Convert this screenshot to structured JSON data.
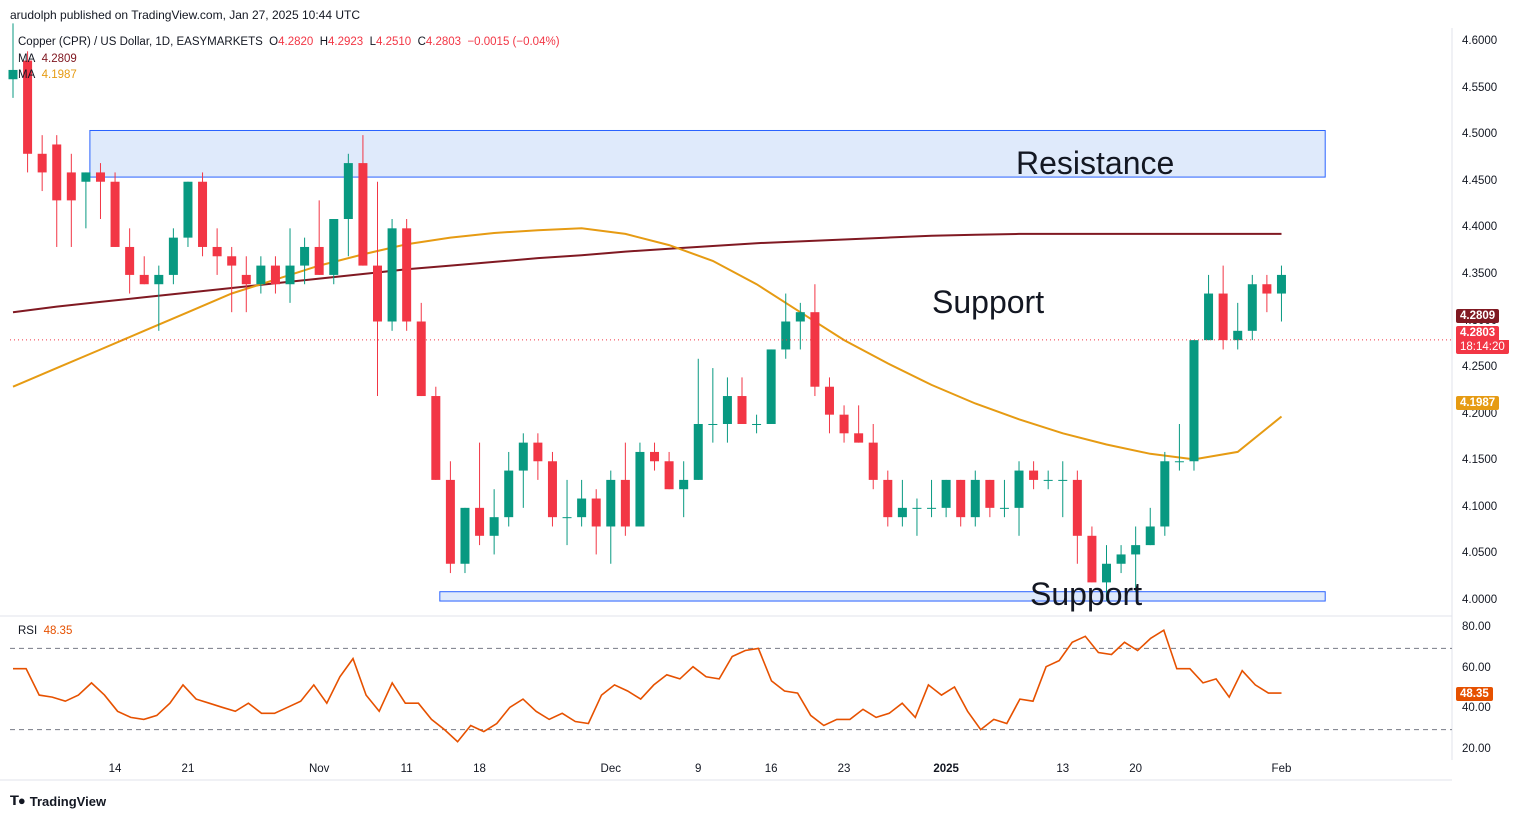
{
  "header": {
    "publish_line": "arudolph published on TradingView.com, Jan 27, 2025 10:44 UTC"
  },
  "legend": {
    "symbol": "Copper (CPR) / US Dollar, 1D, EASYMARKETS",
    "open_label": "O",
    "open": "4.2820",
    "high_label": "H",
    "high": "4.2923",
    "low_label": "L",
    "low": "4.2510",
    "close_label": "C",
    "close": "4.2803",
    "change": "−0.0015 (−0.04%)",
    "ma1_label": "MA",
    "ma1_value": "4.2809",
    "ma2_label": "MA",
    "ma2_value": "4.1987",
    "rsi_label": "RSI",
    "rsi_value": "48.35"
  },
  "annotations": {
    "resistance": "Resistance",
    "support_mid": "Support",
    "support_low": "Support"
  },
  "badges": {
    "ma1": "4.2809",
    "price": "4.2803",
    "countdown": "18:14:20",
    "ma2": "4.1987",
    "rsi": "48.35"
  },
  "colors": {
    "up": "#089981",
    "down": "#f23645",
    "ma_long": "#801922",
    "ma_short": "#e69b13",
    "rsi": "#e65100",
    "zone_fill": "#dbe8fb",
    "zone_border": "#2962ff"
  },
  "footer": {
    "brand": "TradingView",
    "logo_icon": "tradingview-logo-icon"
  },
  "chart_data": {
    "type": "candlestick",
    "title": "",
    "price_axis": {
      "ticks": [
        "4.6000",
        "4.5500",
        "4.5000",
        "4.4500",
        "4.4000",
        "4.3500",
        "4.3000",
        "4.2500",
        "4.2000",
        "4.1500",
        "4.1000",
        "4.0500",
        "4.0000"
      ],
      "range": [
        3.985,
        4.615
      ]
    },
    "rsi_axis": {
      "ticks": [
        "80.00",
        "60.00",
        "40.00",
        "20.00"
      ],
      "range": [
        15,
        85
      ],
      "bands": [
        70,
        30
      ]
    },
    "x_ticks": [
      {
        "label": "14",
        "index": 7
      },
      {
        "label": "21",
        "index": 12
      },
      {
        "label": "Nov",
        "index": 21
      },
      {
        "label": "11",
        "index": 27
      },
      {
        "label": "18",
        "index": 32
      },
      {
        "label": "Dec",
        "index": 41
      },
      {
        "label": "9",
        "index": 47
      },
      {
        "label": "16",
        "index": 52
      },
      {
        "label": "23",
        "index": 57
      },
      {
        "label": "2025",
        "index": 64,
        "bold": true
      },
      {
        "label": "13",
        "index": 72
      },
      {
        "label": "20",
        "index": 77
      },
      {
        "label": "Feb",
        "index": 87
      }
    ],
    "zones": [
      {
        "name": "Resistance",
        "from_index": 5,
        "to_index": 90,
        "low": 4.455,
        "high": 4.505
      },
      {
        "name": "Support",
        "from_index": 29,
        "to_index": 90,
        "low": 4.0,
        "high": 4.01
      }
    ],
    "ohlc": [
      [
        4.56,
        4.62,
        4.54,
        4.57
      ],
      [
        4.58,
        4.59,
        4.46,
        4.48
      ],
      [
        4.48,
        4.5,
        4.44,
        4.46
      ],
      [
        4.49,
        4.5,
        4.38,
        4.43
      ],
      [
        4.46,
        4.48,
        4.38,
        4.43
      ],
      [
        4.45,
        4.46,
        4.4,
        4.46
      ],
      [
        4.46,
        4.47,
        4.41,
        4.45
      ],
      [
        4.45,
        4.46,
        4.38,
        4.38
      ],
      [
        4.38,
        4.4,
        4.33,
        4.35
      ],
      [
        4.35,
        4.37,
        4.34,
        4.34
      ],
      [
        4.34,
        4.36,
        4.29,
        4.35
      ],
      [
        4.35,
        4.4,
        4.34,
        4.39
      ],
      [
        4.39,
        4.45,
        4.38,
        4.45
      ],
      [
        4.45,
        4.46,
        4.37,
        4.38
      ],
      [
        4.38,
        4.4,
        4.35,
        4.37
      ],
      [
        4.37,
        4.38,
        4.31,
        4.36
      ],
      [
        4.35,
        4.37,
        4.31,
        4.34
      ],
      [
        4.34,
        4.37,
        4.33,
        4.36
      ],
      [
        4.36,
        4.37,
        4.33,
        4.34
      ],
      [
        4.34,
        4.4,
        4.32,
        4.36
      ],
      [
        4.36,
        4.39,
        4.34,
        4.38
      ],
      [
        4.38,
        4.43,
        4.35,
        4.35
      ],
      [
        4.35,
        4.41,
        4.34,
        4.41
      ],
      [
        4.41,
        4.48,
        4.37,
        4.47
      ],
      [
        4.47,
        4.5,
        4.36,
        4.36
      ],
      [
        4.36,
        4.45,
        4.22,
        4.3
      ],
      [
        4.3,
        4.41,
        4.29,
        4.4
      ],
      [
        4.4,
        4.41,
        4.29,
        4.3
      ],
      [
        4.3,
        4.32,
        4.22,
        4.22
      ],
      [
        4.22,
        4.23,
        4.13,
        4.13
      ],
      [
        4.13,
        4.15,
        4.03,
        4.04
      ],
      [
        4.04,
        4.1,
        4.03,
        4.1
      ],
      [
        4.1,
        4.17,
        4.06,
        4.07
      ],
      [
        4.07,
        4.12,
        4.05,
        4.09
      ],
      [
        4.09,
        4.16,
        4.08,
        4.14
      ],
      [
        4.14,
        4.18,
        4.1,
        4.17
      ],
      [
        4.17,
        4.18,
        4.13,
        4.15
      ],
      [
        4.15,
        4.16,
        4.08,
        4.09
      ],
      [
        4.09,
        4.13,
        4.06,
        4.09
      ],
      [
        4.09,
        4.13,
        4.08,
        4.11
      ],
      [
        4.11,
        4.12,
        4.05,
        4.08
      ],
      [
        4.08,
        4.14,
        4.04,
        4.13
      ],
      [
        4.13,
        4.17,
        4.07,
        4.08
      ],
      [
        4.08,
        4.17,
        4.08,
        4.16
      ],
      [
        4.16,
        4.17,
        4.14,
        4.15
      ],
      [
        4.15,
        4.16,
        4.12,
        4.12
      ],
      [
        4.12,
        4.15,
        4.09,
        4.13
      ],
      [
        4.13,
        4.26,
        4.13,
        4.19
      ],
      [
        4.19,
        4.25,
        4.17,
        4.19
      ],
      [
        4.19,
        4.24,
        4.17,
        4.22
      ],
      [
        4.22,
        4.24,
        4.19,
        4.19
      ],
      [
        4.19,
        4.2,
        4.18,
        4.19
      ],
      [
        4.19,
        4.27,
        4.19,
        4.27
      ],
      [
        4.27,
        4.33,
        4.26,
        4.3
      ],
      [
        4.3,
        4.32,
        4.27,
        4.31
      ],
      [
        4.31,
        4.34,
        4.22,
        4.23
      ],
      [
        4.23,
        4.24,
        4.18,
        4.2
      ],
      [
        4.2,
        4.21,
        4.17,
        4.18
      ],
      [
        4.18,
        4.21,
        4.17,
        4.17
      ],
      [
        4.17,
        4.19,
        4.12,
        4.13
      ],
      [
        4.13,
        4.14,
        4.08,
        4.09
      ],
      [
        4.09,
        4.13,
        4.08,
        4.1
      ],
      [
        4.1,
        4.11,
        4.07,
        4.1
      ],
      [
        4.1,
        4.13,
        4.09,
        4.1
      ],
      [
        4.1,
        4.13,
        4.09,
        4.13
      ],
      [
        4.13,
        4.13,
        4.08,
        4.09
      ],
      [
        4.09,
        4.14,
        4.08,
        4.13
      ],
      [
        4.13,
        4.13,
        4.09,
        4.1
      ],
      [
        4.1,
        4.13,
        4.09,
        4.1
      ],
      [
        4.1,
        4.15,
        4.07,
        4.14
      ],
      [
        4.14,
        4.15,
        4.12,
        4.13
      ],
      [
        4.13,
        4.14,
        4.12,
        4.13
      ],
      [
        4.13,
        4.15,
        4.09,
        4.13
      ],
      [
        4.13,
        4.14,
        4.04,
        4.07
      ],
      [
        4.07,
        4.08,
        4.02,
        4.02
      ],
      [
        4.02,
        4.06,
        4.0,
        4.04
      ],
      [
        4.04,
        4.06,
        4.03,
        4.05
      ],
      [
        4.05,
        4.08,
        4.01,
        4.06
      ],
      [
        4.06,
        4.1,
        4.06,
        4.08
      ],
      [
        4.08,
        4.16,
        4.07,
        4.15
      ],
      [
        4.15,
        4.19,
        4.14,
        4.15
      ],
      [
        4.15,
        4.28,
        4.14,
        4.28
      ],
      [
        4.28,
        4.35,
        4.28,
        4.33
      ],
      [
        4.33,
        4.36,
        4.27,
        4.28
      ],
      [
        4.28,
        4.32,
        4.27,
        4.29
      ],
      [
        4.29,
        4.35,
        4.28,
        4.34
      ],
      [
        4.34,
        4.35,
        4.31,
        4.33
      ],
      [
        4.33,
        4.36,
        4.3,
        4.35
      ]
    ],
    "ma_long": [
      4.31,
      4.316,
      4.321,
      4.326,
      4.331,
      4.336,
      4.341,
      4.346,
      4.351,
      4.356,
      4.36,
      4.364,
      4.368,
      4.371,
      4.375,
      4.378,
      4.381,
      4.384,
      4.386,
      4.388,
      4.39,
      4.392,
      4.393,
      4.394,
      4.394,
      4.394,
      4.394,
      4.394,
      4.394,
      4.394
    ],
    "ma_short": [
      4.23,
      4.25,
      4.27,
      4.29,
      4.31,
      4.33,
      4.345,
      4.36,
      4.372,
      4.383,
      4.39,
      4.395,
      4.398,
      4.4,
      4.394,
      4.382,
      4.365,
      4.34,
      4.31,
      4.28,
      4.255,
      4.232,
      4.212,
      4.195,
      4.18,
      4.168,
      4.158,
      4.152,
      4.16,
      4.198
    ],
    "rsi": [
      60,
      60,
      47,
      46,
      44,
      47,
      53,
      47,
      39,
      36,
      35,
      37,
      43,
      52,
      45,
      43,
      41,
      39,
      43,
      38,
      38,
      41,
      44,
      52,
      43,
      56,
      65,
      47,
      39,
      53,
      43,
      43,
      35,
      30,
      24,
      32,
      29,
      33,
      41,
      45,
      39,
      35,
      38,
      34,
      33,
      47,
      52,
      49,
      45,
      52,
      57,
      55,
      61,
      56,
      55,
      66,
      69,
      70,
      54,
      49,
      48,
      37,
      32,
      35,
      35,
      40,
      36,
      38,
      43,
      36,
      52,
      47,
      51,
      39,
      30,
      35,
      33,
      45,
      44,
      61,
      64,
      73,
      76,
      68,
      67,
      73,
      69,
      75,
      79,
      60,
      60,
      53,
      55,
      46,
      59,
      52,
      48,
      48
    ],
    "rsi_ma": []
  }
}
